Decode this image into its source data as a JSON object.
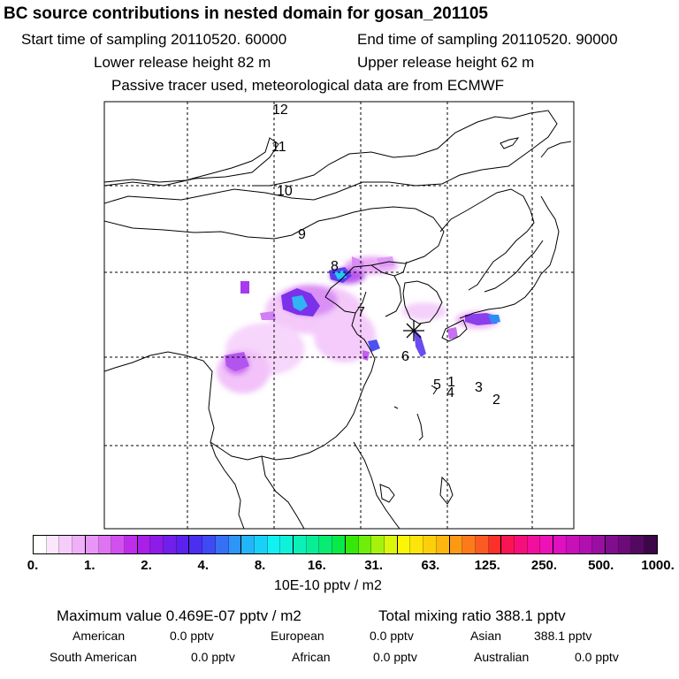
{
  "header": {
    "title": "BC  source contributions in nested domain for gosan_201105",
    "start_time": "Start time of sampling 20110520. 60000",
    "end_time": "End time of sampling 20110520. 90000",
    "lower_release": "Lower release height   82 m",
    "upper_release": "Upper release height   62 m",
    "tracer_note": "Passive tracer used, meteorological data are from ECMWF"
  },
  "map": {
    "trajectory_labels": [
      "12",
      "11",
      "10",
      "9",
      "8",
      "7",
      "6",
      "5",
      "1",
      "4",
      "3",
      "2"
    ],
    "receptor_marker": "star-receptor-icon"
  },
  "colorbar": {
    "ticks": [
      "0.",
      "1.",
      "2.",
      "4.",
      "8.",
      "16.",
      "31.",
      "63.",
      "125.",
      "250.",
      "500.",
      "1000."
    ],
    "colors": [
      "#ffffff",
      "#fbe6fd",
      "#f6ccfb",
      "#f0b0f8",
      "#e896f5",
      "#de74f2",
      "#d150ee",
      "#c02cec",
      "#a91fe9",
      "#8e1be9",
      "#7020ea",
      "#5a22ec",
      "#4b2ff0",
      "#3f4bf2",
      "#3670f4",
      "#2d95f6",
      "#22b6f8",
      "#19d1f6",
      "#10f2f2",
      "#0ff2d9",
      "#0bf0b7",
      "#08ee97",
      "#07ec71",
      "#07ea48",
      "#36e80a",
      "#6fee0a",
      "#a7f20c",
      "#dbf60c",
      "#fbf607",
      "#fde40a",
      "#fdcf0b",
      "#fdb60e",
      "#fc9a14",
      "#fc7a1a",
      "#fb5a22",
      "#fb302a",
      "#f91454",
      "#f60f7c",
      "#f20f9d",
      "#ec12b7",
      "#de10c0",
      "#c80fb8",
      "#b20fb0",
      "#9a0ea2",
      "#800d8e",
      "#6a0b78",
      "#540960",
      "#3c0648"
    ],
    "units": "10E-10 pptv / m2"
  },
  "summary": {
    "max_value": "Maximum value  0.469E-07 pptv / m2",
    "total_mixing": "Total mixing ratio     388.1 pptv",
    "regions": [
      {
        "label": "American",
        "value": "0.0 pptv"
      },
      {
        "label": "European",
        "value": "0.0 pptv"
      },
      {
        "label": "Asian",
        "value": "388.1 pptv"
      },
      {
        "label": "South American",
        "value": "0.0 pptv"
      },
      {
        "label": "African",
        "value": "0.0 pptv"
      },
      {
        "label": "Australian",
        "value": "0.0 pptv"
      }
    ]
  }
}
